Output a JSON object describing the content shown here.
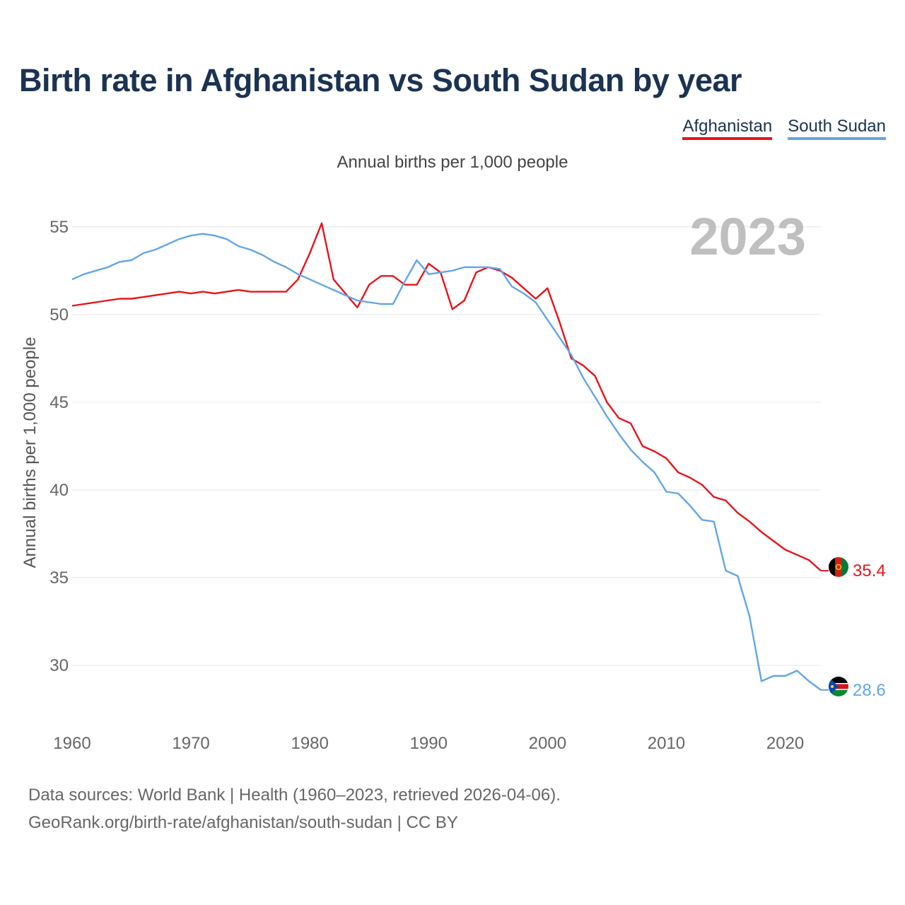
{
  "title": "Birth rate in Afghanistan vs South Sudan by year",
  "legend": [
    "Afghanistan",
    "South Sudan"
  ],
  "footer": {
    "line1": "Data sources: World Bank | Health (1960–2023, retrieved 2026-04-06).",
    "line2": "GeoRank.org/birth-rate/afghanistan/south-sudan | CC BY"
  },
  "chart_data": {
    "type": "line",
    "title": "Birth rate in Afghanistan vs South Sudan by year",
    "subtitle": "Annual births per 1,000 people",
    "ylabel": "Annual births per 1,000 people",
    "xlabel": "",
    "year_label": "2023",
    "xlim": [
      1960,
      2023
    ],
    "ylim": [
      26.7,
      56
    ],
    "xticks": [
      1960,
      1970,
      1980,
      1990,
      2000,
      2010,
      2020
    ],
    "yticks": [
      30,
      35,
      40,
      45,
      50,
      55
    ],
    "x": [
      1960,
      1961,
      1962,
      1963,
      1964,
      1965,
      1966,
      1967,
      1968,
      1969,
      1970,
      1971,
      1972,
      1973,
      1974,
      1975,
      1976,
      1977,
      1978,
      1979,
      1980,
      1981,
      1982,
      1983,
      1984,
      1985,
      1986,
      1987,
      1988,
      1989,
      1990,
      1991,
      1992,
      1993,
      1994,
      1995,
      1996,
      1997,
      1998,
      1999,
      2000,
      2001,
      2002,
      2003,
      2004,
      2005,
      2006,
      2007,
      2008,
      2009,
      2010,
      2011,
      2012,
      2013,
      2014,
      2015,
      2016,
      2017,
      2018,
      2019,
      2020,
      2021,
      2022,
      2023
    ],
    "series": [
      {
        "name": "Afghanistan",
        "color": "#e8141b",
        "end_label": "35.4",
        "values": [
          50.5,
          50.6,
          50.7,
          50.8,
          50.9,
          50.9,
          51.0,
          51.1,
          51.2,
          51.3,
          51.2,
          51.3,
          51.2,
          51.3,
          51.4,
          51.3,
          51.3,
          51.3,
          51.3,
          52.0,
          53.5,
          55.2,
          52.0,
          51.2,
          50.4,
          51.7,
          52.2,
          52.2,
          51.7,
          51.7,
          52.9,
          52.4,
          50.3,
          50.8,
          52.4,
          52.7,
          52.5,
          52.1,
          51.5,
          50.9,
          51.5,
          49.6,
          47.5,
          47.1,
          46.5,
          45.0,
          44.1,
          43.8,
          42.5,
          42.2,
          41.8,
          41.0,
          40.7,
          40.3,
          39.6,
          39.4,
          38.7,
          38.2,
          37.6,
          37.1,
          36.6,
          36.3,
          36.0,
          35.4
        ]
      },
      {
        "name": "South Sudan",
        "color": "#62a6e6",
        "end_label": "28.6",
        "values": [
          52.0,
          52.3,
          52.5,
          52.7,
          53.0,
          53.1,
          53.5,
          53.7,
          54.0,
          54.3,
          54.5,
          54.6,
          54.5,
          54.3,
          53.9,
          53.7,
          53.4,
          53.0,
          52.7,
          52.3,
          52.0,
          51.7,
          51.4,
          51.1,
          50.8,
          50.7,
          50.6,
          50.6,
          51.9,
          53.1,
          52.3,
          52.4,
          52.5,
          52.7,
          52.7,
          52.7,
          52.6,
          51.6,
          51.2,
          50.7,
          49.7,
          48.7,
          47.7,
          46.4,
          45.3,
          44.2,
          43.2,
          42.3,
          41.6,
          41.0,
          39.9,
          39.8,
          39.1,
          38.3,
          38.2,
          35.4,
          35.1,
          32.8,
          29.1,
          29.4,
          29.4,
          29.7,
          29.1,
          28.6
        ]
      }
    ]
  }
}
